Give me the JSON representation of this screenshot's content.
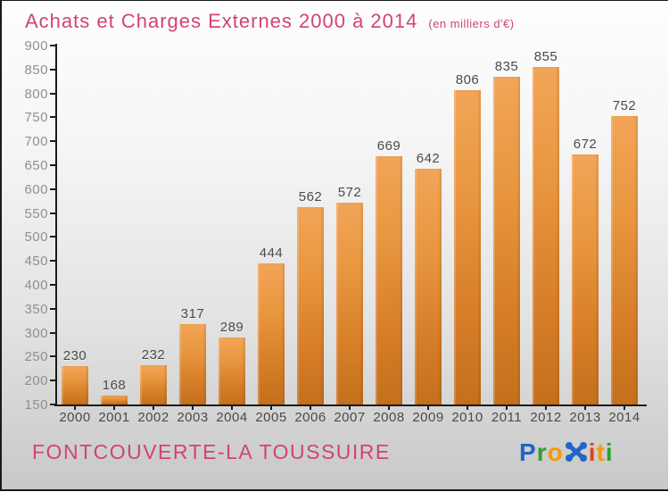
{
  "header": {
    "title": "Achats et Charges Externes 2000 à 2014",
    "subtitle": "(en milliers d'€)"
  },
  "footer": {
    "place": "FONTCOUVERTE-LA TOUSSUIRE",
    "logo": {
      "text": "Proxiti",
      "letters": [
        {
          "char": "P",
          "color": "#2166c4"
        },
        {
          "char": "r",
          "color": "#2f9e33"
        },
        {
          "char": "o",
          "color": "#f59b00"
        },
        {
          "char": "x",
          "color": "#2166c4",
          "stylized": true
        },
        {
          "char": "i",
          "color": "#e8420e"
        },
        {
          "char": "t",
          "color": "#f59b00"
        },
        {
          "char": "i",
          "color": "#2f9e33"
        }
      ]
    }
  },
  "colors": {
    "title": "#d2446e",
    "bar_gradient_top": "#f2a557",
    "bar_gradient_bottom": "#c4701c",
    "axis": "#1b1b1b",
    "ytick_label": "#8f8f8f",
    "value_label": "#4a4a4a",
    "background_top": "#fefefe",
    "background_bottom": "#c8c8c8"
  },
  "chart_data": {
    "type": "bar",
    "title": "Achats et Charges Externes 2000 à 2014",
    "subtitle": "(en milliers d'€)",
    "unit": "milliers d'€",
    "categories": [
      "2000",
      "2001",
      "2002",
      "2003",
      "2004",
      "2005",
      "2006",
      "2007",
      "2008",
      "2009",
      "2010",
      "2011",
      "2012",
      "2013",
      "2014"
    ],
    "values": [
      230,
      168,
      232,
      317,
      289,
      444,
      562,
      572,
      669,
      642,
      806,
      835,
      855,
      672,
      752
    ],
    "xlabel": "",
    "ylabel": "",
    "ylim": [
      150,
      900
    ],
    "ytick_step": 50,
    "grid": false,
    "legend": false,
    "value_labels": true
  }
}
